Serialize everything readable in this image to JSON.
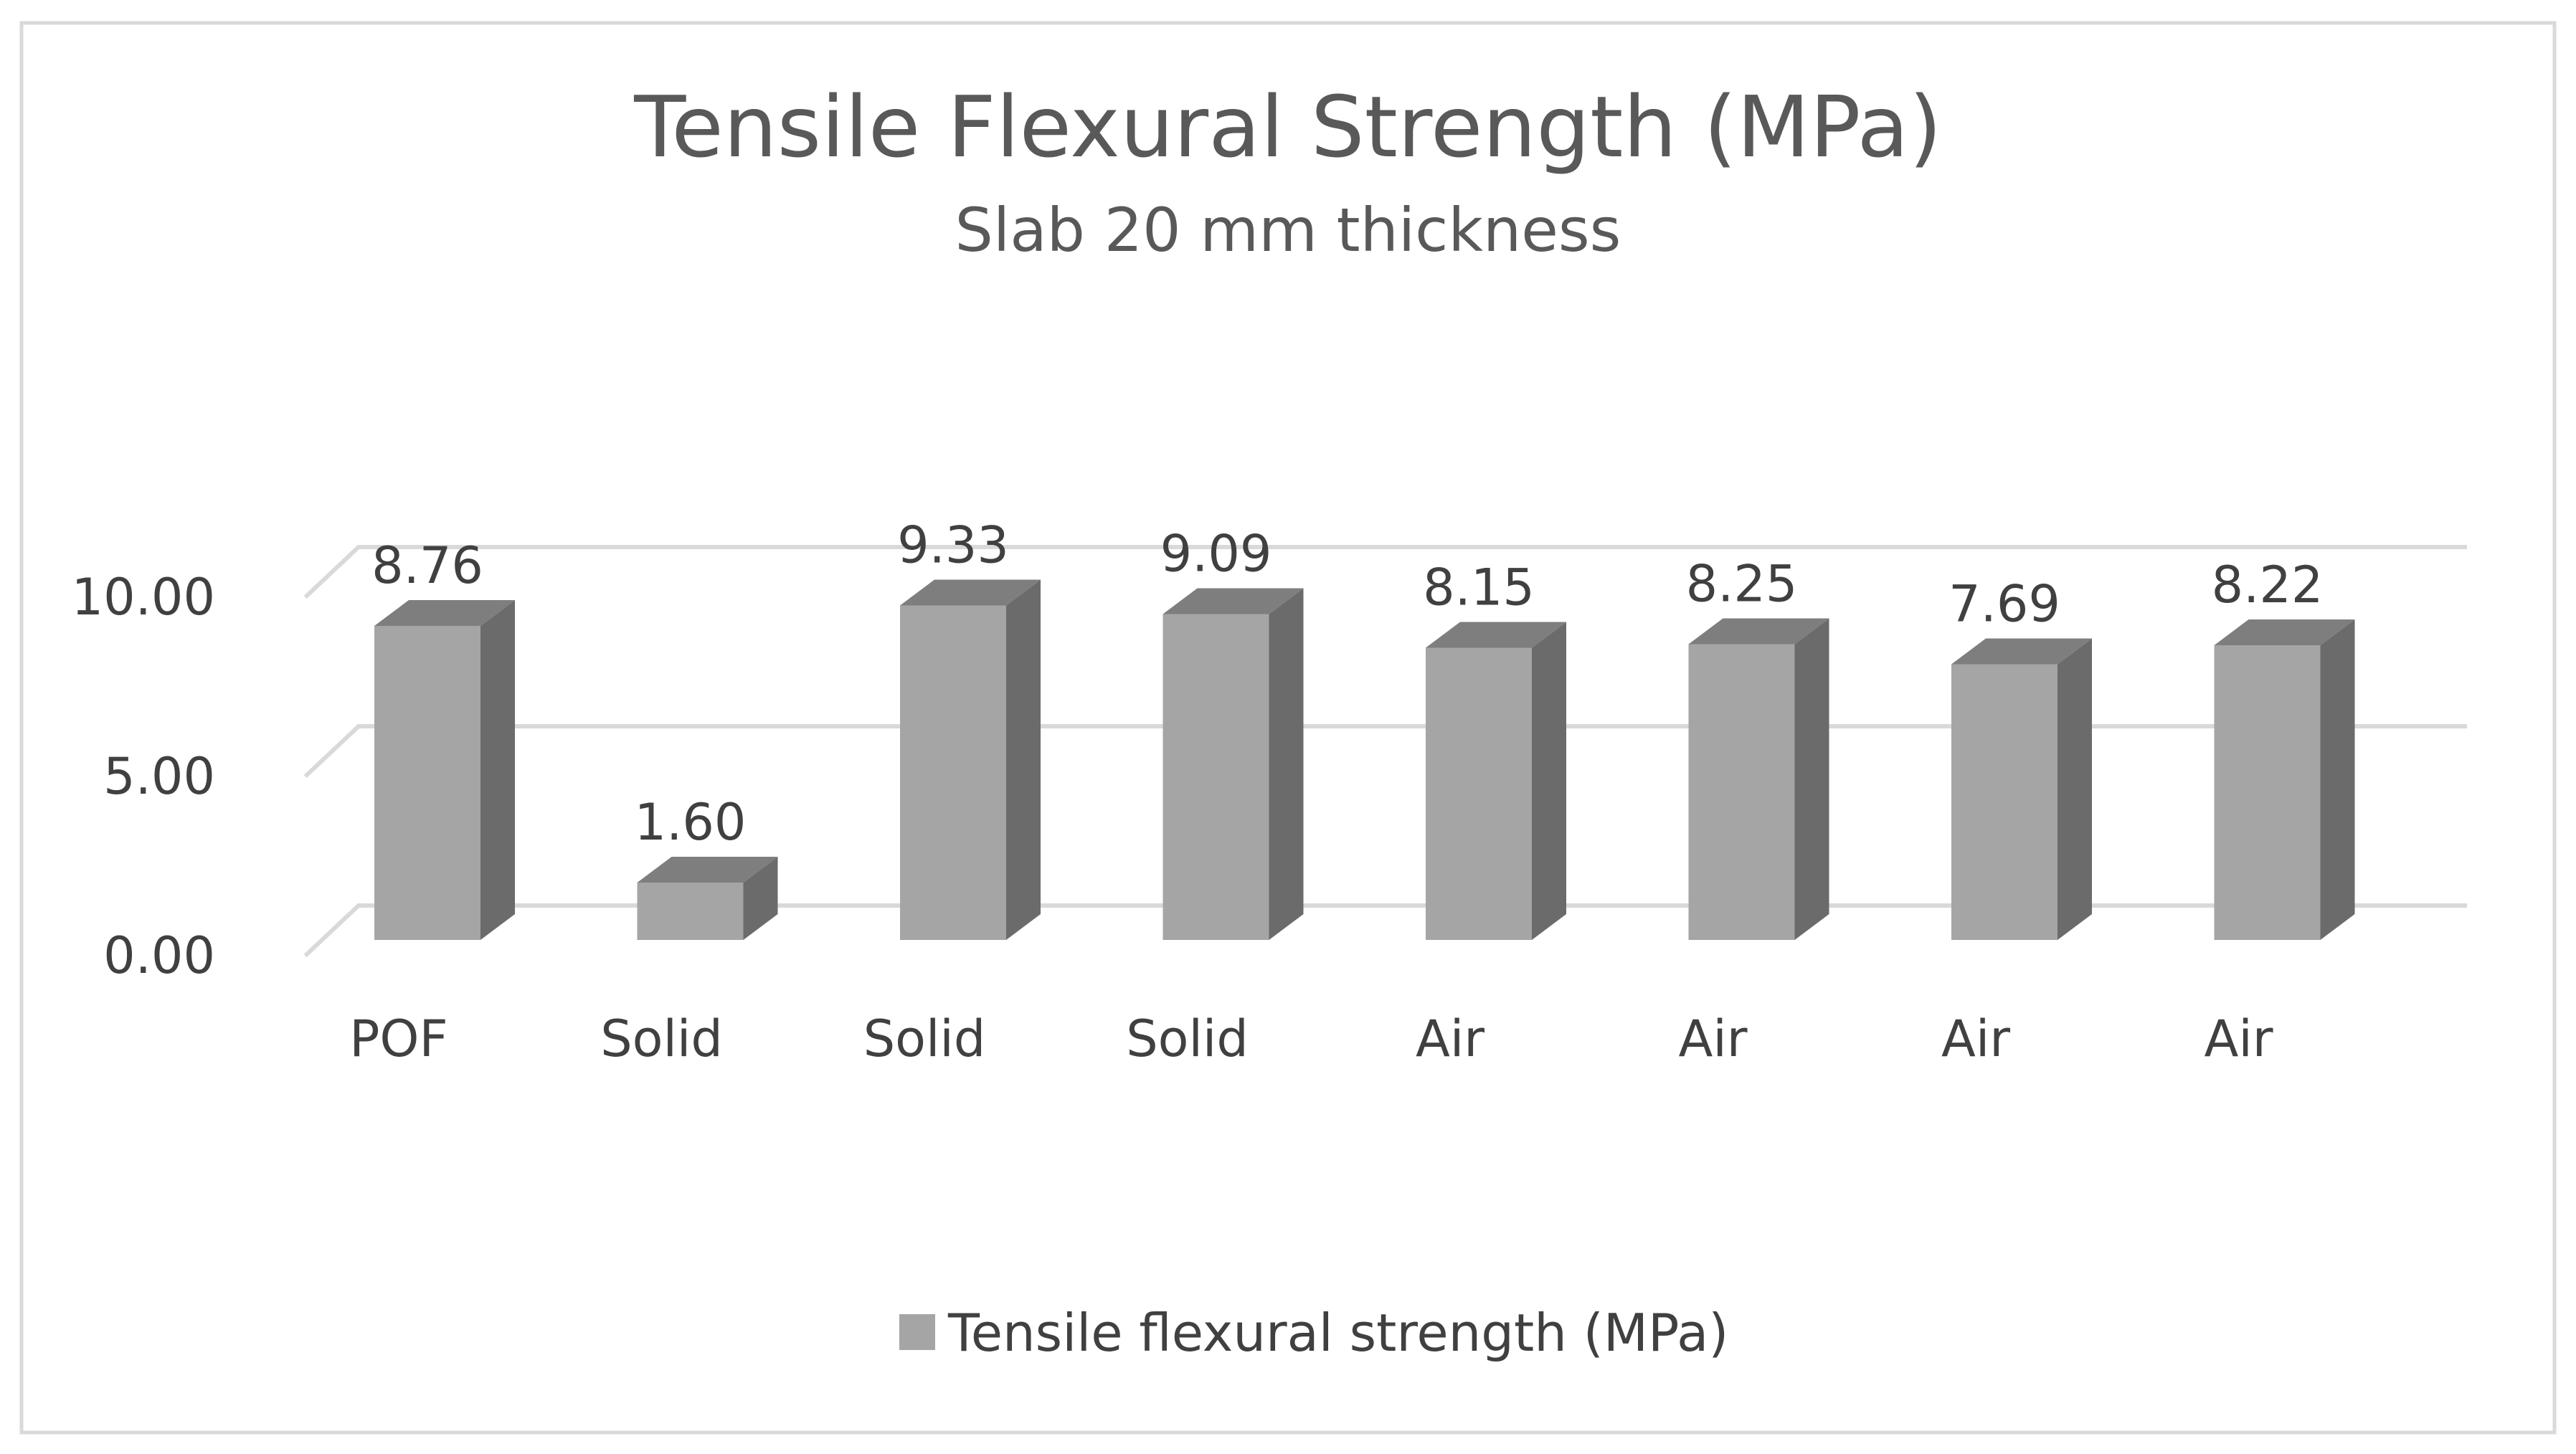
{
  "chart_data": {
    "type": "bar",
    "title": "Tensile Flexural Strength (MPa)",
    "subtitle": "Slab 20 mm thickness",
    "categories": [
      "POF",
      "Solid",
      "Solid",
      "Solid",
      "Air",
      "Air",
      "Air",
      "Air"
    ],
    "series": [
      {
        "name": "Tensile flexural strength (MPa)",
        "values": [
          8.76,
          1.6,
          9.33,
          9.09,
          8.15,
          8.25,
          7.69,
          8.22
        ],
        "data_labels": [
          "8.76",
          "1.60",
          "9.33",
          "9.09",
          "8.15",
          "8.25",
          "7.69",
          "8.22"
        ]
      }
    ],
    "y_ticks": [
      "0.00",
      "5.00",
      "10.00"
    ],
    "y_tick_values": [
      0,
      5,
      10
    ],
    "ylim": [
      0,
      10
    ],
    "grid": true,
    "three_d": true,
    "legend_position": "bottom",
    "colors": {
      "bar_front": "#a5a5a5",
      "bar_side": "#6b6b6b",
      "bar_top": "#7e7e7e",
      "grid": "#d9d9d9",
      "border": "#d9d9d9"
    }
  }
}
